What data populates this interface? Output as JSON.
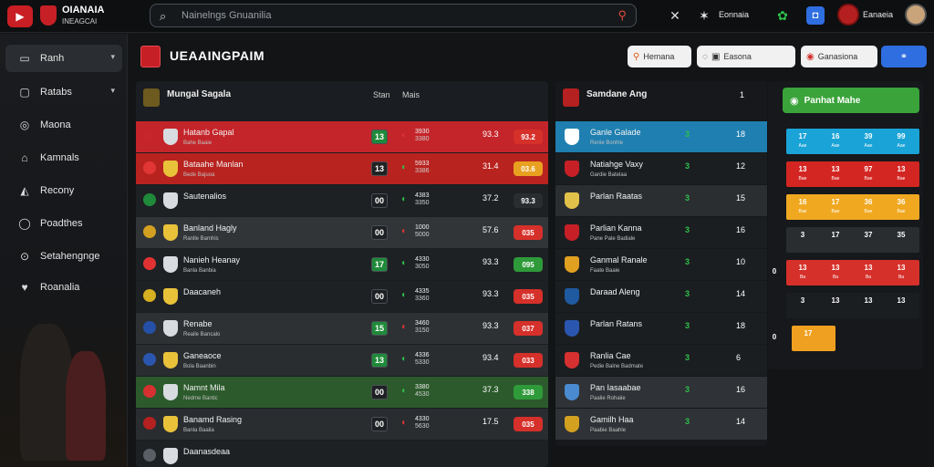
{
  "header": {
    "logo_icon": "play-icon",
    "brand_name": "OIANAIA",
    "brand_sub": "INEAGCAI",
    "search_placeholder": "Nainelngs Gnuanilia",
    "user_label": "Eonnaia",
    "profile_label": "Eanaeia"
  },
  "sidebar": {
    "items": [
      {
        "label": "Ranh",
        "icon": "home-icon",
        "active": true
      },
      {
        "label": "Ratabs",
        "icon": "chat-icon"
      },
      {
        "label": "Maona",
        "icon": "globe-icon"
      },
      {
        "label": "Kamnals",
        "icon": "bag-icon"
      },
      {
        "label": "Recony",
        "icon": "bell-icon"
      },
      {
        "label": "Poadthes",
        "icon": "message-icon"
      },
      {
        "label": "Setahengnge",
        "icon": "settings-icon"
      },
      {
        "label": "Roanalia",
        "icon": "heart-icon"
      }
    ]
  },
  "main": {
    "title": "UEAAINGPAIM",
    "buttons": [
      {
        "label": "Hemana",
        "icon": "search-icon"
      },
      {
        "label": "Easona",
        "icon": "filter-icon"
      },
      {
        "label": "Ganasiona",
        "icon": "list-icon"
      },
      {
        "label": "",
        "icon": "share-icon"
      }
    ]
  },
  "standings": {
    "title": "Mungal Sagala",
    "col_a": "Stan",
    "col_b": "Mais",
    "rows": [
      {
        "name": "Hatanb Gapal",
        "sub": "Bahe  Baaie",
        "chip": "13",
        "v1": "3930",
        "v2": "3380",
        "n": "93.3",
        "pill": "93.2",
        "hl": "#c4252a",
        "c1": "#1f8a3a"
      },
      {
        "name": "Bataahe Manlan",
        "sub": "Bede  Bajuoa",
        "chip": "13",
        "v1": "5933",
        "v2": "3386",
        "n": "31.4",
        "pill": "03.6",
        "hl": "#b8231f",
        "c1": "#222"
      },
      {
        "name": "Sautenalios",
        "sub": "",
        "chip": "00",
        "v1": "4383",
        "v2": "3350",
        "n": "37.2",
        "pill": "93.3",
        "hl": "#1e2124",
        "c1": "#1e2124"
      },
      {
        "name": "Banland Hagly",
        "sub": "Ranlle Bamhis",
        "chip": "00",
        "v1": "1000",
        "v2": "5000",
        "n": "57.6",
        "pill": "035",
        "hl": "#323538",
        "c1": "#1e2124"
      },
      {
        "name": "Nanieh Heanay",
        "sub": "Banla  Banbia",
        "chip": "17",
        "v1": "4330",
        "v2": "3050",
        "n": "93.3",
        "pill": "095",
        "hl": "#1e2124",
        "c1": "#1f8a3a"
      },
      {
        "name": "Daacaneh",
        "sub": "",
        "chip": "00",
        "v1": "4335",
        "v2": "3360",
        "n": "93.3",
        "pill": "035",
        "hl": "#1e2124",
        "c1": "#1e2124"
      },
      {
        "name": "Renabe",
        "sub": "Reaile Bancalo",
        "chip": "15",
        "v1": "3460",
        "v2": "3150",
        "n": "93.3",
        "pill": "037",
        "hl": "#2e3134",
        "c1": "#1f8a3a"
      },
      {
        "name": "Ganeaoce",
        "sub": "Bola  Baanbin",
        "chip": "13",
        "v1": "4336",
        "v2": "5330",
        "n": "93.4",
        "pill": "033",
        "hl": "#2a2d30",
        "c1": "#1f8a3a"
      },
      {
        "name": "Namnt Mila",
        "sub": "Nedme Bantic",
        "chip": "00",
        "v1": "3380",
        "v2": "4530",
        "n": "37.3",
        "pill": "338",
        "hl": "#2c5a2c",
        "c1": "#1e2124"
      },
      {
        "name": "Banamd Rasing",
        "sub": "Banla  Baalia",
        "chip": "00",
        "v1": "4330",
        "v2": "5630",
        "n": "17.5",
        "pill": "035",
        "hl": "#2a2d30",
        "c1": "#1e2124"
      },
      {
        "name": "Daanasdeaa",
        "sub": "",
        "chip": "",
        "v1": "",
        "v2": "",
        "n": "",
        "pill": "",
        "hl": "#1e2124",
        "c1": "#1e2124"
      }
    ]
  },
  "teams": {
    "title": "Samdane Ang",
    "count": "1",
    "rows": [
      {
        "name": "Ganle Galade",
        "sub": "Renie  Bonhle",
        "a": "3",
        "b": "18",
        "hl": "#1f7fb0"
      },
      {
        "name": "Natiahge Vaxy",
        "sub": "Gardie  Batelaa",
        "a": "3",
        "b": "12",
        "hl": "#1b1e21"
      },
      {
        "name": "Parlan Raatas",
        "sub": "",
        "a": "3",
        "b": "15",
        "hl": "#2b2e31"
      },
      {
        "name": "Parlian Kanna",
        "sub": "Pane  Pale  Badiale",
        "a": "3",
        "b": "16",
        "hl": "#1b1e21"
      },
      {
        "name": "Ganmal Ranale",
        "sub": "Faate  Baaie",
        "a": "3",
        "b": "10",
        "hl": "#1b1e21"
      },
      {
        "name": "Daraad Aleng",
        "sub": "",
        "a": "3",
        "b": "14",
        "hl": "#1b1e21"
      },
      {
        "name": "Parlan Ratans",
        "sub": "",
        "a": "3",
        "b": "18",
        "hl": "#1b1e21"
      },
      {
        "name": "Ranlia Cae",
        "sub": "Pedie  Balne  Badmate",
        "a": "3",
        "b": "6",
        "hl": "#1b1e21"
      },
      {
        "name": "Pan Iasaabae",
        "sub": "Paalie  Rohaiie",
        "a": "3",
        "b": "16",
        "hl": "#2f3236"
      },
      {
        "name": "Gamilh Haa",
        "sub": "Paabie  Baahle",
        "a": "3",
        "b": "14",
        "hl": "#2f3236"
      }
    ]
  },
  "matrix": {
    "button_label": "Panhat Mahe",
    "rows": [
      {
        "label": "",
        "cells": [
          "17",
          "16",
          "39",
          "99"
        ],
        "color": "#1aa3d6",
        "sub": "Aae"
      },
      {
        "label": "",
        "cells": [
          "13",
          "13",
          "97",
          "13"
        ],
        "color": "#d32622",
        "sub": "Bae"
      },
      {
        "label": "",
        "cells": [
          "16",
          "17",
          "36",
          "36"
        ],
        "color": "#f0a820",
        "sub": "Bae"
      },
      {
        "label": "",
        "cells": [
          "3",
          "17",
          "37",
          "35"
        ],
        "color": "#2a2d30",
        "sub": ""
      },
      {
        "label": "0",
        "cells": [
          "13",
          "13",
          "13",
          "13"
        ],
        "color": "#d6302a",
        "sub": "Ba"
      },
      {
        "label": "",
        "cells": [
          "3",
          "13",
          "13",
          "13"
        ],
        "color": "#1b1e21",
        "sub": ""
      },
      {
        "label": "0",
        "cells": [
          "17",
          "",
          "",
          ""
        ],
        "color": "#f0a020",
        "sub": ""
      }
    ]
  }
}
